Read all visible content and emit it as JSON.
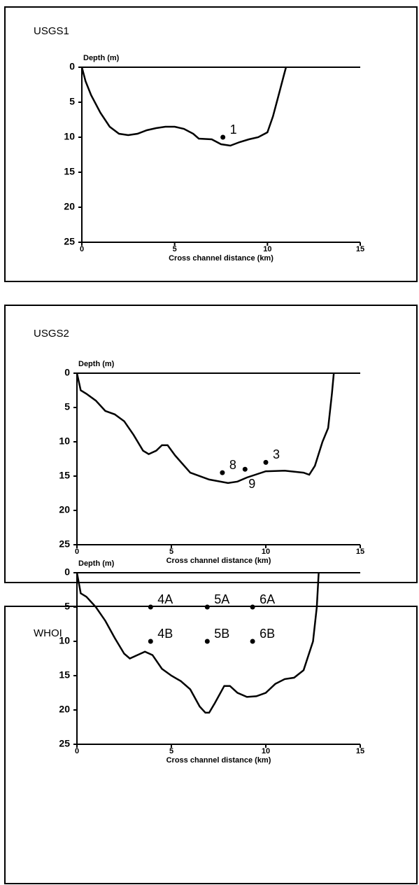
{
  "chart_data": [
    {
      "type": "line",
      "title": "USGS1",
      "ylabel": "Depth (m)",
      "xlabel": "Cross channel distance (km)",
      "xlim": [
        0,
        15
      ],
      "ylim": [
        0,
        25
      ],
      "y_inverted": true,
      "xticks": [
        0,
        5,
        10,
        15
      ],
      "yticks": [
        0,
        5,
        10,
        15,
        20,
        25
      ],
      "color": "#000000",
      "x": [
        0,
        0.2,
        0.5,
        1,
        1.5,
        2,
        2.5,
        3,
        3.5,
        4,
        4.5,
        5,
        5.5,
        6,
        6.3,
        7,
        7.5,
        8,
        8.5,
        9,
        9.5,
        10,
        10.3,
        10.6,
        10.9,
        11
      ],
      "values": [
        0,
        2,
        4,
        6.5,
        8.5,
        9.5,
        9.7,
        9.5,
        9,
        8.7,
        8.5,
        8.5,
        8.8,
        9.5,
        10.2,
        10.3,
        11,
        11.2,
        10.7,
        10.3,
        10,
        9.3,
        7,
        4,
        1,
        0
      ],
      "points": [
        {
          "name": "1",
          "x": 7.6,
          "y": 10,
          "label_position": "upper-right"
        }
      ]
    },
    {
      "type": "line",
      "title": "USGS2",
      "ylabel": "Depth (m)",
      "xlabel": "Cross channel distance (km)",
      "xlim": [
        0,
        15
      ],
      "ylim": [
        0,
        25
      ],
      "y_inverted": true,
      "xticks": [
        0,
        5,
        10,
        15
      ],
      "yticks": [
        0,
        5,
        10,
        15,
        20,
        25
      ],
      "color": "#000000",
      "x": [
        0,
        0.2,
        0.5,
        1,
        1.5,
        2,
        2.5,
        3,
        3.5,
        3.8,
        4.2,
        4.5,
        4.8,
        5.2,
        6,
        7,
        8,
        8.5,
        9,
        10,
        11,
        12,
        12.3,
        12.6,
        13,
        13.3,
        13.5,
        13.6
      ],
      "values": [
        0,
        2.5,
        3,
        4,
        5.5,
        6,
        7,
        9,
        11.3,
        11.8,
        11.3,
        10.5,
        10.5,
        12,
        14.5,
        15.5,
        16,
        15.8,
        15.2,
        14.3,
        14.2,
        14.5,
        14.8,
        13.5,
        10,
        8,
        3,
        0
      ],
      "points": [
        {
          "name": "8",
          "x": 7.7,
          "y": 14.5,
          "label_position": "upper-right"
        },
        {
          "name": "9",
          "x": 8.9,
          "y": 14,
          "label_position": "below"
        },
        {
          "name": "3",
          "x": 10,
          "y": 13,
          "label_position": "upper-right"
        }
      ]
    },
    {
      "type": "line",
      "title": "WHOI",
      "ylabel": "Depth (m)",
      "xlabel": "Cross channel distance (km)",
      "xlim": [
        0,
        15
      ],
      "ylim": [
        0,
        25
      ],
      "y_inverted": true,
      "xticks": [
        0,
        5,
        10,
        15
      ],
      "yticks": [
        0,
        5,
        10,
        15,
        20,
        25
      ],
      "color": "#000000",
      "x": [
        0,
        0.2,
        0.5,
        1,
        1.5,
        2,
        2.5,
        2.8,
        3.2,
        3.6,
        4,
        4.5,
        5,
        5.5,
        6,
        6.5,
        6.8,
        7,
        7.3,
        7.8,
        8.1,
        8.5,
        9,
        9.5,
        10,
        10.5,
        11,
        11.5,
        12,
        12.5,
        12.7,
        12.8
      ],
      "values": [
        0,
        3,
        3.5,
        5,
        7,
        9.5,
        11.8,
        12.5,
        12,
        11.5,
        12,
        14,
        15,
        15.8,
        17,
        19.5,
        20.4,
        20.4,
        19,
        16.5,
        16.5,
        17.5,
        18.1,
        18,
        17.5,
        16.2,
        15.5,
        15.3,
        14.2,
        10,
        5,
        0
      ],
      "points": [
        {
          "name": "4A",
          "x": 3.9,
          "y": 5,
          "label_position": "upper-right"
        },
        {
          "name": "4B",
          "x": 3.9,
          "y": 10,
          "label_position": "upper-right"
        },
        {
          "name": "5A",
          "x": 6.9,
          "y": 5,
          "label_position": "upper-right"
        },
        {
          "name": "5B",
          "x": 6.9,
          "y": 10,
          "label_position": "upper-right"
        },
        {
          "name": "6A",
          "x": 9.3,
          "y": 5,
          "label_position": "upper-right"
        },
        {
          "name": "6B",
          "x": 9.3,
          "y": 10,
          "label_position": "upper-right"
        }
      ]
    }
  ]
}
